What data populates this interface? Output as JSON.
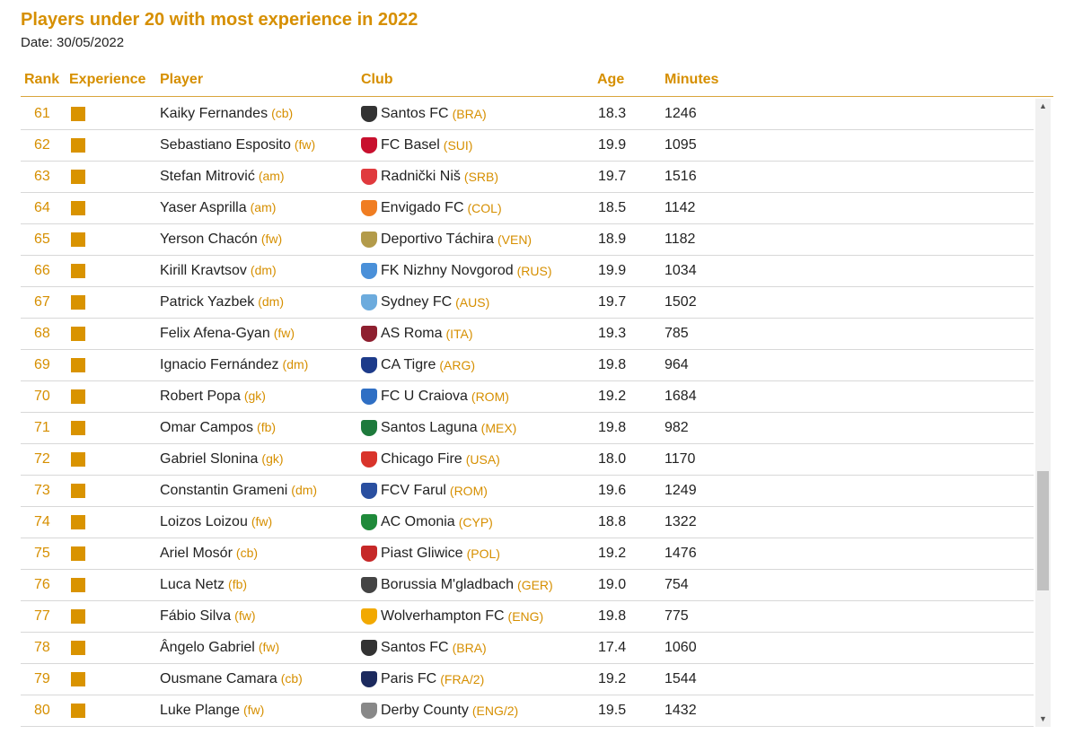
{
  "title": "Players under 20 with most experience in 2022",
  "date": "Date: 30/05/2022",
  "columns": {
    "rank": "Rank",
    "experience": "Experience",
    "player": "Player",
    "club": "Club",
    "age": "Age",
    "minutes": "Minutes"
  },
  "colors": {
    "accent": "#d68f00",
    "experience_box": "#d99300"
  },
  "rows": [
    {
      "rank": "61",
      "player": "Kaiky Fernandes",
      "pos": "(cb)",
      "club": "Santos FC",
      "country": "(BRA)",
      "crest": "#333333",
      "age": "18.3",
      "minutes": "1246"
    },
    {
      "rank": "62",
      "player": "Sebastiano Esposito",
      "pos": "(fw)",
      "club": "FC Basel",
      "country": "(SUI)",
      "crest": "#c8102e",
      "age": "19.9",
      "minutes": "1095"
    },
    {
      "rank": "63",
      "player": "Stefan Mitrović",
      "pos": "(am)",
      "club": "Radnički Niš",
      "country": "(SRB)",
      "crest": "#e03a3e",
      "age": "19.7",
      "minutes": "1516"
    },
    {
      "rank": "64",
      "player": "Yaser Asprilla",
      "pos": "(am)",
      "club": "Envigado FC",
      "country": "(COL)",
      "crest": "#f07d22",
      "age": "18.5",
      "minutes": "1142"
    },
    {
      "rank": "65",
      "player": "Yerson Chacón",
      "pos": "(fw)",
      "club": "Deportivo Táchira",
      "country": "(VEN)",
      "crest": "#b39b4a",
      "age": "18.9",
      "minutes": "1182"
    },
    {
      "rank": "66",
      "player": "Kirill Kravtsov",
      "pos": "(dm)",
      "club": "FK Nizhny Novgorod",
      "country": "(RUS)",
      "crest": "#4a90d9",
      "age": "19.9",
      "minutes": "1034"
    },
    {
      "rank": "67",
      "player": "Patrick Yazbek",
      "pos": "(dm)",
      "club": "Sydney FC",
      "country": "(AUS)",
      "crest": "#6cabdd",
      "age": "19.7",
      "minutes": "1502"
    },
    {
      "rank": "68",
      "player": "Felix Afena-Gyan",
      "pos": "(fw)",
      "club": "AS Roma",
      "country": "(ITA)",
      "crest": "#8e1f2f",
      "age": "19.3",
      "minutes": "785"
    },
    {
      "rank": "69",
      "player": "Ignacio Fernández",
      "pos": "(dm)",
      "club": "CA Tigre",
      "country": "(ARG)",
      "crest": "#1d3b8a",
      "age": "19.8",
      "minutes": "964"
    },
    {
      "rank": "70",
      "player": "Robert Popa",
      "pos": "(gk)",
      "club": "FC U Craiova",
      "country": "(ROM)",
      "crest": "#2f6fc4",
      "age": "19.2",
      "minutes": "1684"
    },
    {
      "rank": "71",
      "player": "Omar Campos",
      "pos": "(fb)",
      "club": "Santos Laguna",
      "country": "(MEX)",
      "crest": "#1e7a3c",
      "age": "19.8",
      "minutes": "982"
    },
    {
      "rank": "72",
      "player": "Gabriel Slonina",
      "pos": "(gk)",
      "club": "Chicago Fire",
      "country": "(USA)",
      "crest": "#d9342b",
      "age": "18.0",
      "minutes": "1170"
    },
    {
      "rank": "73",
      "player": "Constantin Grameni",
      "pos": "(dm)",
      "club": "FCV Farul",
      "country": "(ROM)",
      "crest": "#2a4fa0",
      "age": "19.6",
      "minutes": "1249"
    },
    {
      "rank": "74",
      "player": "Loizos Loizou",
      "pos": "(fw)",
      "club": "AC Omonia",
      "country": "(CYP)",
      "crest": "#1f8a3a",
      "age": "18.8",
      "minutes": "1322"
    },
    {
      "rank": "75",
      "player": "Ariel Mosór",
      "pos": "(cb)",
      "club": "Piast Gliwice",
      "country": "(POL)",
      "crest": "#c62828",
      "age": "19.2",
      "minutes": "1476"
    },
    {
      "rank": "76",
      "player": "Luca Netz",
      "pos": "(fb)",
      "club": "Borussia M'gladbach",
      "country": "(GER)",
      "crest": "#444444",
      "age": "19.0",
      "minutes": "754"
    },
    {
      "rank": "77",
      "player": "Fábio Silva",
      "pos": "(fw)",
      "club": "Wolverhampton FC",
      "country": "(ENG)",
      "crest": "#f2a900",
      "age": "19.8",
      "minutes": "775"
    },
    {
      "rank": "78",
      "player": "Ângelo Gabriel",
      "pos": "(fw)",
      "club": "Santos FC",
      "country": "(BRA)",
      "crest": "#333333",
      "age": "17.4",
      "minutes": "1060"
    },
    {
      "rank": "79",
      "player": "Ousmane Camara",
      "pos": "(cb)",
      "club": "Paris FC",
      "country": "(FRA/2)",
      "crest": "#1c2a5e",
      "age": "19.2",
      "minutes": "1544"
    },
    {
      "rank": "80",
      "player": "Luke Plange",
      "pos": "(fw)",
      "club": "Derby County",
      "country": "(ENG/2)",
      "crest": "#888888",
      "age": "19.5",
      "minutes": "1432"
    }
  ]
}
